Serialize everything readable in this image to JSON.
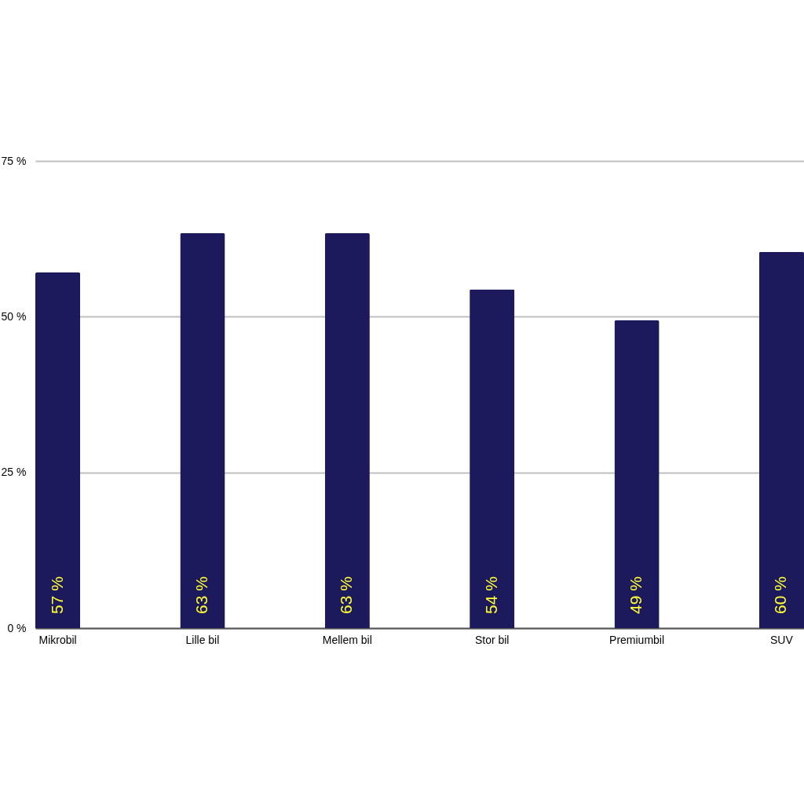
{
  "chart_data": {
    "type": "bar",
    "categories": [
      "Mikrobil",
      "Lille bil",
      "Mellem bil",
      "Stor bil",
      "Premiumbil",
      "SUV"
    ],
    "values": [
      57.1,
      63.4,
      63.4,
      54.4,
      49.4,
      60.4
    ],
    "value_labels": [
      "57 %",
      "63 %",
      "63 %",
      "54 %",
      "49 %",
      "60 %"
    ],
    "color": "#1c1a5c",
    "ylim": [
      0,
      75
    ],
    "yticks": [
      {
        "value": 0,
        "label": "0 %"
      },
      {
        "value": 25,
        "label": "25 %"
      },
      {
        "value": 50,
        "label": "50 %"
      },
      {
        "value": 75,
        "label": "75 %"
      }
    ],
    "grid": "y"
  }
}
